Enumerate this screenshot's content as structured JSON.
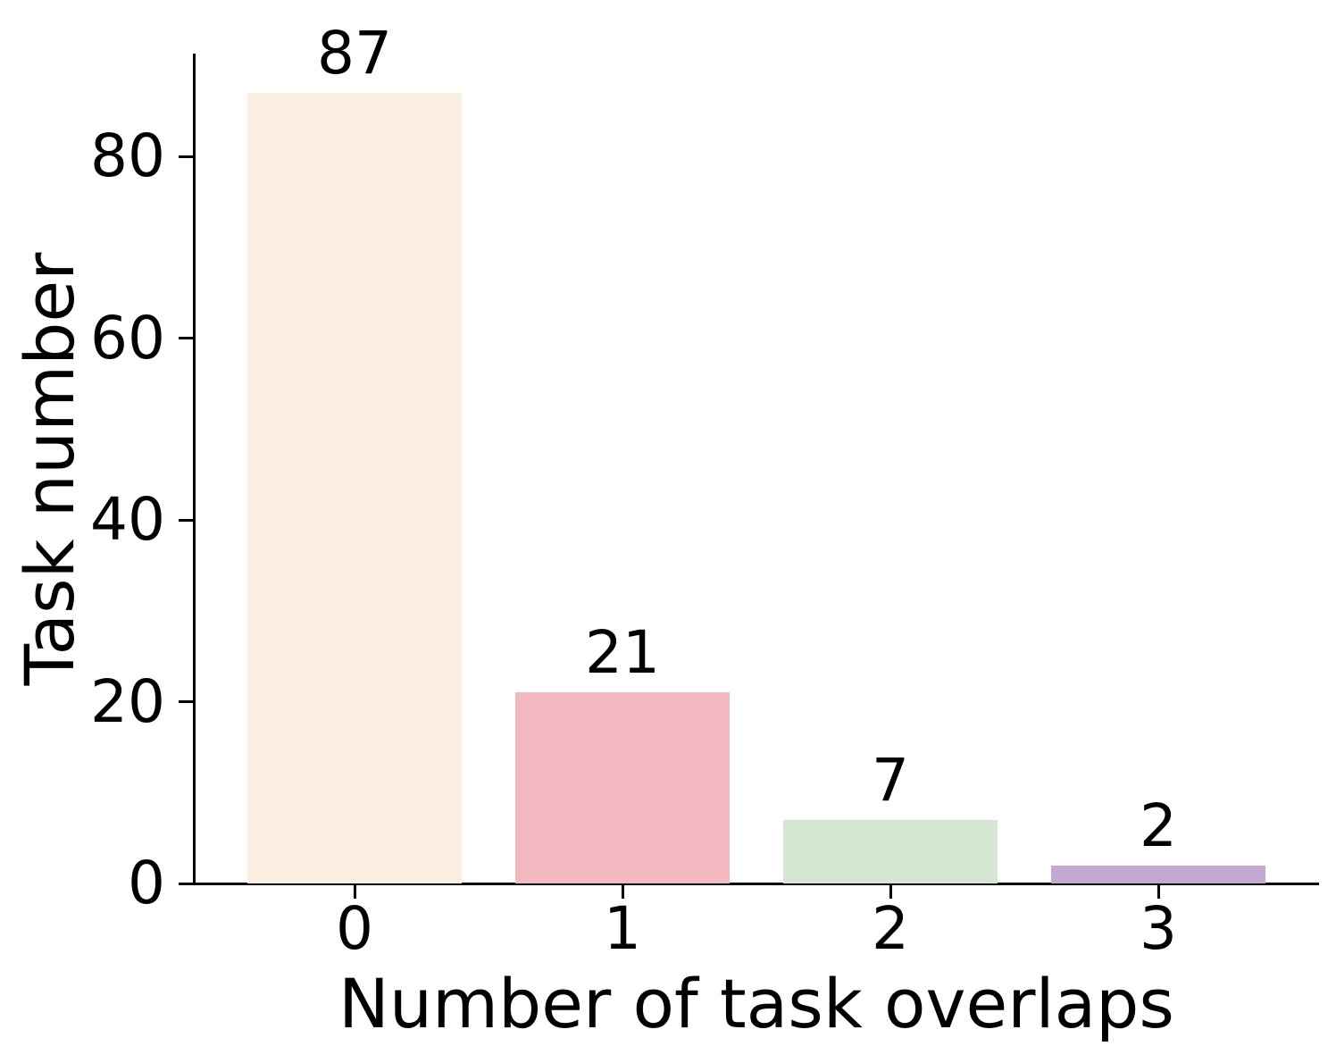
{
  "chart_data": {
    "type": "bar",
    "categories": [
      "0",
      "1",
      "2",
      "3"
    ],
    "values": [
      87,
      21,
      7,
      2
    ],
    "value_labels": [
      "87",
      "21",
      "7",
      "2"
    ],
    "bar_colors": [
      "#fbede0",
      "#f4b8c1",
      "#d5e6d3",
      "#c3a8d1"
    ],
    "xlabel": "Number of task overlaps",
    "ylabel": "Task number",
    "yticks": [
      0,
      20,
      40,
      60,
      80
    ],
    "ylim": [
      0,
      91.35
    ],
    "xlim": [
      -0.6,
      3.6
    ],
    "bar_width_fraction": 0.8,
    "grid": false,
    "legend": "none",
    "axis_color": "#000000",
    "text_color": "#000000",
    "background_color": "#ffffff"
  }
}
